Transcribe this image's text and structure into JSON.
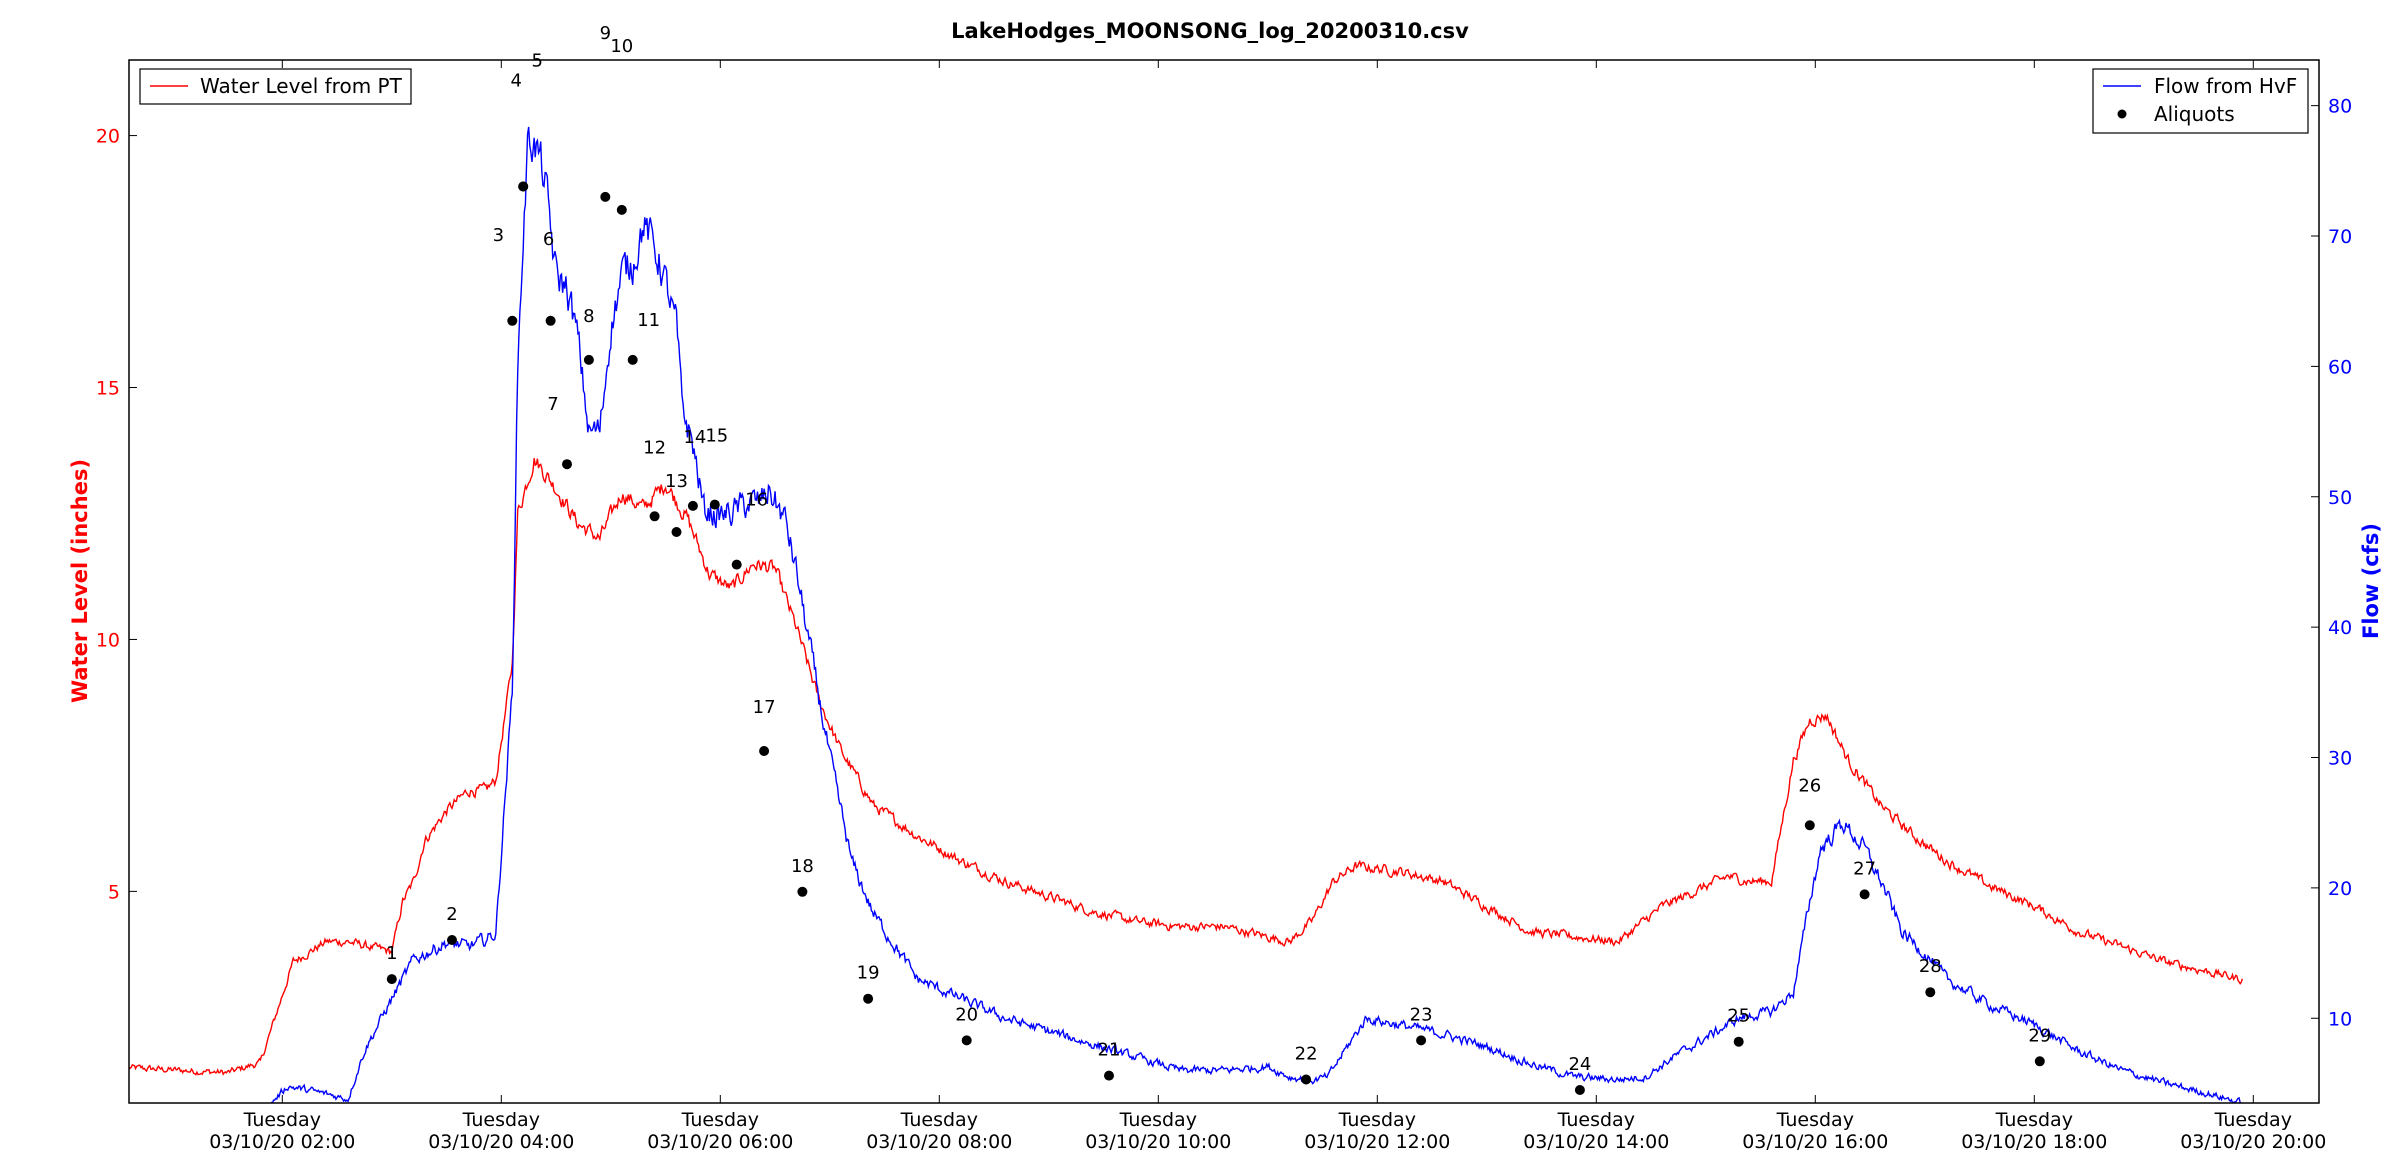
{
  "chart_data": {
    "type": "line",
    "title": "LakeHodges_MOONSONG_log_20200310.csv",
    "left_axis": {
      "label": "Water Level (inches)",
      "range": [
        0.8,
        21.5
      ],
      "ticks": [
        "5",
        "10",
        "15",
        "20"
      ],
      "color": "#ff0000"
    },
    "right_axis": {
      "label": "Flow (cfs)",
      "range": [
        3.5,
        83.5
      ],
      "ticks": [
        "10",
        "20",
        "30",
        "40",
        "50",
        "60",
        "70",
        "80"
      ],
      "color": "#0000ff"
    },
    "x_axis": {
      "range_hours": [
        0.6,
        20.6
      ],
      "ticks": [
        {
          "hour": 2,
          "day": "Tuesday",
          "date": "03/10/20 02:00"
        },
        {
          "hour": 4,
          "day": "Tuesday",
          "date": "03/10/20 04:00"
        },
        {
          "hour": 6,
          "day": "Tuesday",
          "date": "03/10/20 06:00"
        },
        {
          "hour": 8,
          "day": "Tuesday",
          "date": "03/10/20 08:00"
        },
        {
          "hour": 10,
          "day": "Tuesday",
          "date": "03/10/20 10:00"
        },
        {
          "hour": 12,
          "day": "Tuesday",
          "date": "03/10/20 12:00"
        },
        {
          "hour": 14,
          "day": "Tuesday",
          "date": "03/10/20 14:00"
        },
        {
          "hour": 16,
          "day": "Tuesday",
          "date": "03/10/20 16:00"
        },
        {
          "hour": 18,
          "day": "Tuesday",
          "date": "03/10/20 18:00"
        },
        {
          "hour": 20,
          "day": "Tuesday",
          "date": "03/10/20 20:00"
        }
      ]
    },
    "legend_left": {
      "position": "top-left",
      "entries": [
        {
          "label": "Water Level from PT",
          "color": "#ff0000",
          "marker": "line"
        }
      ]
    },
    "legend_right": {
      "position": "top-right",
      "entries": [
        {
          "label": "Flow from HvF",
          "color": "#0000ff",
          "marker": "line"
        },
        {
          "label": "Aliquots",
          "color": "#000000",
          "marker": "dot"
        }
      ]
    },
    "series": [
      {
        "name": "Water Level from PT",
        "axis": "left",
        "color": "#ff0000",
        "noise": 0.1,
        "x": [
          0.6,
          1.5,
          1.8,
          1.95,
          2.1,
          2.4,
          2.6,
          2.8,
          3.0,
          3.1,
          3.2,
          3.3,
          3.5,
          3.7,
          3.85,
          3.95,
          4.1,
          4.15,
          4.3,
          4.5,
          4.7,
          4.9,
          5.1,
          5.3,
          5.5,
          5.7,
          5.9,
          6.1,
          6.3,
          6.5,
          6.7,
          6.9,
          7.1,
          7.4,
          7.8,
          8.2,
          8.6,
          9.0,
          9.4,
          9.8,
          10.2,
          10.6,
          11.0,
          11.2,
          11.4,
          11.6,
          11.8,
          12.2,
          12.6,
          13.0,
          13.4,
          13.8,
          14.2,
          14.6,
          14.9,
          15.2,
          15.4,
          15.6,
          15.8,
          15.95,
          16.1,
          16.3,
          16.6,
          16.9,
          17.2,
          17.6,
          18.0,
          18.4,
          18.8,
          19.2,
          19.6,
          19.9
        ],
        "y": [
          1.5,
          1.4,
          1.6,
          2.6,
          3.6,
          4.0,
          4.0,
          3.9,
          3.8,
          4.8,
          5.2,
          6.0,
          6.6,
          7.0,
          7.0,
          7.2,
          9.5,
          12.5,
          13.6,
          13.0,
          12.3,
          12.0,
          12.9,
          12.6,
          13.1,
          12.4,
          11.3,
          11.0,
          11.5,
          11.4,
          10.2,
          8.8,
          7.8,
          6.7,
          6.1,
          5.6,
          5.2,
          4.9,
          4.6,
          4.4,
          4.3,
          4.3,
          4.1,
          4.0,
          4.4,
          5.2,
          5.5,
          5.4,
          5.2,
          4.7,
          4.2,
          4.1,
          4.0,
          4.7,
          5.0,
          5.3,
          5.2,
          5.2,
          7.6,
          8.4,
          8.5,
          7.6,
          6.7,
          6.1,
          5.6,
          5.1,
          4.7,
          4.2,
          3.9,
          3.6,
          3.4,
          3.25
        ]
      },
      {
        "name": "Flow from HvF",
        "axis": "right",
        "color": "#0000ff",
        "noise": 0.35,
        "x": [
          1.9,
          2.05,
          2.4,
          2.6,
          2.75,
          3.0,
          3.2,
          3.5,
          3.7,
          3.85,
          3.95,
          4.1,
          4.15,
          4.2,
          4.25,
          4.35,
          4.4,
          4.5,
          4.6,
          4.7,
          4.8,
          4.9,
          5.0,
          5.1,
          5.2,
          5.3,
          5.45,
          5.6,
          5.65,
          5.75,
          5.85,
          6.0,
          6.15,
          6.25,
          6.35,
          6.45,
          6.6,
          6.7,
          6.85,
          7.0,
          7.2,
          7.4,
          7.8,
          8.2,
          8.6,
          9.0,
          9.4,
          9.8,
          10.2,
          10.6,
          11.0,
          11.2,
          11.4,
          11.55,
          11.7,
          11.9,
          12.2,
          12.6,
          13.0,
          13.4,
          13.8,
          14.2,
          14.45,
          14.7,
          15.0,
          15.3,
          15.6,
          15.8,
          15.95,
          16.05,
          16.25,
          16.45,
          16.6,
          16.8,
          17.0,
          17.2,
          17.6,
          18.0,
          18.4,
          18.8,
          19.2,
          19.6,
          19.9
        ],
        "y": [
          3.5,
          4.8,
          4.2,
          3.8,
          7.5,
          11.5,
          14.5,
          15.8,
          15.5,
          16.0,
          16.5,
          35.0,
          60.0,
          70.0,
          78.0,
          76.0,
          74.0,
          67.0,
          66.0,
          62.0,
          55.0,
          55.0,
          63.0,
          67.0,
          68.0,
          71.0,
          68.0,
          63.0,
          57.0,
          54.0,
          49.0,
          48.5,
          49.0,
          49.5,
          49.5,
          50.5,
          48.0,
          44.0,
          37.0,
          30.0,
          22.0,
          18.0,
          13.0,
          11.5,
          10.0,
          9.0,
          8.0,
          7.0,
          6.0,
          6.0,
          6.3,
          5.5,
          5.2,
          5.5,
          7.5,
          10.0,
          9.5,
          8.8,
          7.8,
          6.5,
          5.5,
          5.3,
          5.5,
          7.0,
          8.5,
          10.0,
          10.5,
          12.0,
          19.0,
          23.0,
          25.0,
          23.0,
          20.5,
          16.5,
          15.0,
          13.0,
          11.0,
          9.5,
          7.5,
          6.0,
          5.0,
          4.2,
          3.5
        ]
      }
    ],
    "aliquots": [
      {
        "label": "1",
        "x": 3.0,
        "y": 13.0
      },
      {
        "label": "2",
        "x": 3.55,
        "y": 16.0
      },
      {
        "label": "3",
        "x": 4.1,
        "y": 63.5
      },
      {
        "label": "4",
        "x": 4.2,
        "y": 73.8
      },
      {
        "label": "5",
        "x": 4.2,
        "y": 73.8
      },
      {
        "label": "6",
        "x": 4.45,
        "y": 63.5
      },
      {
        "label": "7",
        "x": 4.6,
        "y": 52.5
      },
      {
        "label": "8",
        "x": 4.8,
        "y": 60.5
      },
      {
        "label": "9",
        "x": 4.95,
        "y": 73.0
      },
      {
        "label": "10",
        "x": 5.1,
        "y": 72.0
      },
      {
        "label": "11",
        "x": 5.2,
        "y": 60.5
      },
      {
        "label": "12",
        "x": 5.4,
        "y": 48.5
      },
      {
        "label": "13",
        "x": 5.6,
        "y": 47.3
      },
      {
        "label": "14",
        "x": 5.75,
        "y": 49.3
      },
      {
        "label": "15",
        "x": 5.95,
        "y": 49.4
      },
      {
        "label": "16",
        "x": 6.15,
        "y": 44.8
      },
      {
        "label": "17",
        "x": 6.4,
        "y": 30.5
      },
      {
        "label": "18",
        "x": 6.75,
        "y": 19.7
      },
      {
        "label": "19",
        "x": 7.35,
        "y": 11.5
      },
      {
        "label": "20",
        "x": 8.25,
        "y": 8.3
      },
      {
        "label": "21",
        "x": 9.55,
        "y": 5.6
      },
      {
        "label": "22",
        "x": 11.35,
        "y": 5.3
      },
      {
        "label": "23",
        "x": 12.4,
        "y": 8.3
      },
      {
        "label": "24",
        "x": 13.85,
        "y": 4.5
      },
      {
        "label": "25",
        "x": 15.3,
        "y": 8.2
      },
      {
        "label": "26",
        "x": 15.95,
        "y": 24.8
      },
      {
        "label": "27",
        "x": 16.45,
        "y": 19.5
      },
      {
        "label": "28",
        "x": 17.05,
        "y": 12.0
      },
      {
        "label": "29",
        "x": 18.05,
        "y": 6.7
      }
    ]
  }
}
